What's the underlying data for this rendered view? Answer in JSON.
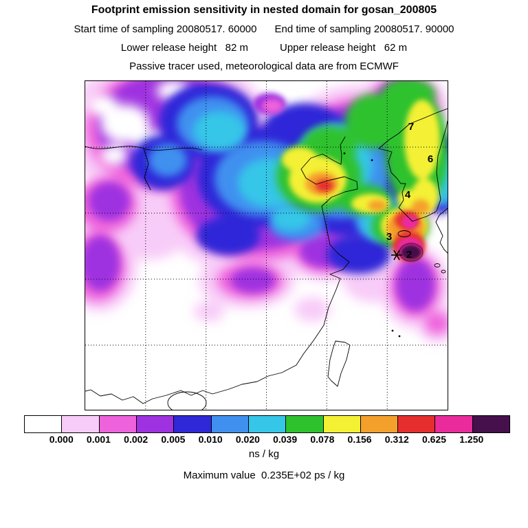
{
  "header": {
    "title": "Footprint emission sensitivity in nested domain for gosan_200805",
    "sampling_start": "Start time of sampling 20080517. 60000",
    "sampling_end": "End time of sampling 20080517. 90000",
    "lower_release": "Lower release height   82 m",
    "upper_release": "Upper release height   62 m",
    "tracer_info": "Passive tracer used, meteorological data are from ECMWF"
  },
  "map": {
    "station_labels": {
      "s7": "7",
      "s6": "6",
      "s4": "4",
      "s3": "3",
      "s2": "2"
    },
    "receptor_marker": "asterisk"
  },
  "colorbar": {
    "levels": [
      "0.000",
      "0.001",
      "0.002",
      "0.005",
      "0.010",
      "0.020",
      "0.039",
      "0.078",
      "0.156",
      "0.312",
      "0.625",
      "1.250"
    ],
    "palette": [
      "#ffffff",
      "#f8ccf8",
      "#ee62dc",
      "#9f32e0",
      "#2f28d8",
      "#4090f0",
      "#35c6e8",
      "#2ec22e",
      "#f4f034",
      "#f4a02c",
      "#e62e2e",
      "#ea2b9b",
      "#46104c"
    ],
    "units_label": "ns / kg"
  },
  "footer": {
    "max_value_line": "Maximum value  0.235E+02 ps / kg"
  },
  "chart_data": {
    "type": "heatmap",
    "title": "Footprint emission sensitivity in nested domain for gosan_200805",
    "site": "gosan_200805",
    "sampling_start": "20080517. 60000",
    "sampling_end": "20080517. 90000",
    "lower_release_height_m": 82,
    "upper_release_height_m": 62,
    "tracer": "Passive tracer",
    "meteorology": "ECMWF",
    "units": "ns / kg",
    "levels": [
      0.0,
      0.001,
      0.002,
      0.005,
      0.01,
      0.02,
      0.039,
      0.078,
      0.156,
      0.312,
      0.625,
      1.25
    ],
    "palette": [
      "#ffffff",
      "#f8ccf8",
      "#ee62dc",
      "#9f32e0",
      "#2f28d8",
      "#4090f0",
      "#35c6e8",
      "#2ec22e",
      "#f4f034",
      "#f4a02c",
      "#e62e2e",
      "#ea2b9b",
      "#46104c"
    ],
    "maximum_value": "0.235E+02 ps / kg",
    "annotations": {
      "station_labels": [
        "7",
        "6",
        "4",
        "3",
        "2"
      ],
      "receptor_marker": "asterisk near label 2 (Gosan, south of Korea)"
    },
    "hotspots": [
      {
        "location_frac_xy": [
          0.89,
          0.52
        ],
        "value_range": "0.625-1.250+ ns/kg",
        "note": "dark-purple core at receptor, south of Korean peninsula"
      },
      {
        "location_frac_xy": [
          0.66,
          0.32
        ],
        "value_range": "0.312-0.625 ns/kg",
        "note": "red/orange secondary maximum over Bohai / Shandong region"
      },
      {
        "location_frac_xy": [
          0.92,
          0.18
        ],
        "value_range": "0.078-0.156 ns/kg",
        "note": "yellow/green band over northeast China and Korea"
      },
      {
        "location_frac_xy": [
          0.35,
          0.25
        ],
        "value_range": "0.010-0.039 ns/kg",
        "note": "broad blue/cyan plume extending northwest across northern China"
      },
      {
        "location_frac_xy": [
          0.15,
          0.35
        ],
        "value_range": "0.001-0.005 ns/kg",
        "note": "pink/purple low-sensitivity fringe at western edge"
      }
    ],
    "grid": "dotted lat/lon graticule, 5-degree spacing",
    "legend_position": "horizontal colorbar below map"
  }
}
